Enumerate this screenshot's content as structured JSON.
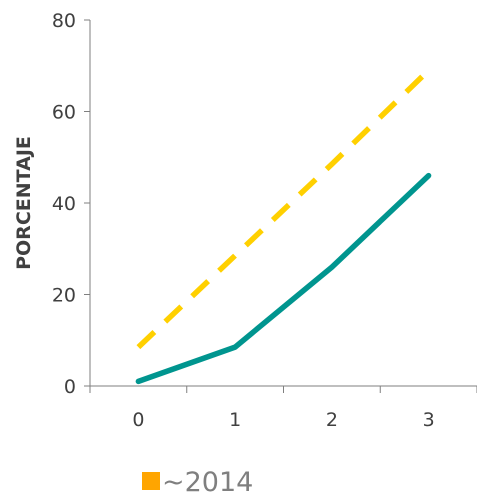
{
  "chart_data": {
    "type": "line",
    "title": "",
    "xlabel": "",
    "ylabel": "PORCENTAJE",
    "x": [
      "0",
      "1",
      "2",
      "3"
    ],
    "ylim": [
      0,
      80
    ],
    "yticks": [
      "0",
      "20",
      "40",
      "60",
      "80"
    ],
    "grid": false,
    "legend_position": "bottom-left",
    "legend": [
      {
        "label": "~2014",
        "color": "#FFA500"
      }
    ],
    "series": [
      {
        "values": [
          8.5,
          28.5,
          48.5,
          69.0
        ],
        "color": "#FFD000",
        "style": "dashed"
      },
      {
        "values": [
          1.0,
          8.5,
          26.0,
          46.0
        ],
        "color": "#00958F",
        "style": "solid"
      }
    ]
  }
}
